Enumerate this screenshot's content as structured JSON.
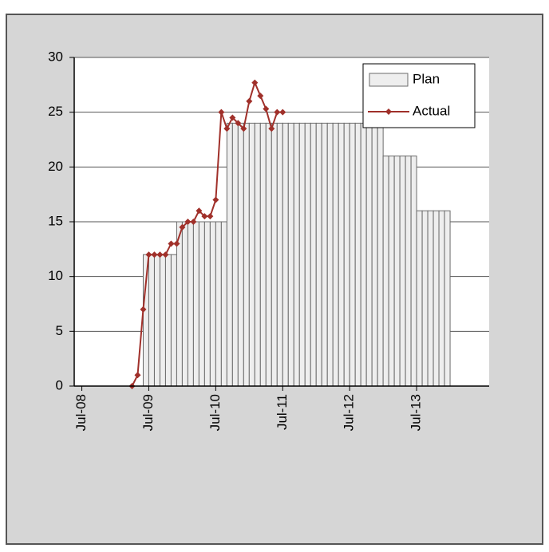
{
  "chart_data": {
    "type": "bar",
    "ylim": [
      0,
      30
    ],
    "yticks": [
      0,
      5,
      10,
      15,
      20,
      25,
      30
    ],
    "xlim": [
      "2008-05-20",
      "2014-08-01"
    ],
    "xticks": [
      {
        "value": "2008-07",
        "label": "Jul-08"
      },
      {
        "value": "2009-07",
        "label": "Jul-09"
      },
      {
        "value": "2010-07",
        "label": "Jul-10"
      },
      {
        "value": "2011-07",
        "label": "Jul-11"
      },
      {
        "value": "2012-07",
        "label": "Jul-12"
      },
      {
        "value": "2013-07",
        "label": "Jul-13"
      }
    ],
    "grid": true,
    "legend": "upper right",
    "series": [
      {
        "name": "Plan",
        "type": "bar",
        "color": "#eeeeee",
        "x": [
          "2009-06",
          "2009-07",
          "2009-08",
          "2009-09",
          "2009-10",
          "2009-11",
          "2009-12",
          "2010-01",
          "2010-02",
          "2010-03",
          "2010-04",
          "2010-05",
          "2010-06",
          "2010-07",
          "2010-08",
          "2010-09",
          "2010-10",
          "2010-11",
          "2010-12",
          "2011-01",
          "2011-02",
          "2011-03",
          "2011-04",
          "2011-05",
          "2011-06",
          "2011-07",
          "2011-08",
          "2011-09",
          "2011-10",
          "2011-11",
          "2011-12",
          "2012-01",
          "2012-02",
          "2012-03",
          "2012-04",
          "2012-05",
          "2012-06",
          "2012-07",
          "2012-08",
          "2012-09",
          "2012-10",
          "2012-11",
          "2012-12",
          "2013-01",
          "2013-02",
          "2013-03",
          "2013-04",
          "2013-05",
          "2013-06",
          "2013-07",
          "2013-08",
          "2013-09",
          "2013-10",
          "2013-11",
          "2013-12"
        ],
        "values": [
          12,
          12,
          12,
          12,
          12,
          12,
          15,
          15,
          15,
          15,
          15,
          15,
          15,
          15,
          15,
          24,
          24,
          24,
          24,
          24,
          24,
          24,
          24,
          24,
          24,
          24,
          24,
          24,
          24,
          24,
          24,
          24,
          24,
          24,
          24,
          24,
          24,
          24,
          24,
          24,
          24,
          24,
          24,
          21,
          21,
          21,
          21,
          21,
          21,
          16,
          16,
          16,
          16,
          16,
          16
        ]
      },
      {
        "name": "Actual",
        "type": "line",
        "color": "#a0302a",
        "x": [
          "2009-04",
          "2009-05",
          "2009-06",
          "2009-07",
          "2009-08",
          "2009-09",
          "2009-10",
          "2009-11",
          "2009-12",
          "2010-01",
          "2010-02",
          "2010-03",
          "2010-04",
          "2010-05",
          "2010-06",
          "2010-07",
          "2010-08",
          "2010-09",
          "2010-10",
          "2010-11",
          "2010-12",
          "2011-01",
          "2011-02",
          "2011-03",
          "2011-04",
          "2011-05",
          "2011-06",
          "2011-07"
        ],
        "values": [
          0,
          1,
          7,
          12,
          12,
          12,
          12,
          13,
          13,
          14.5,
          15,
          15,
          16,
          15.5,
          15.5,
          17,
          25,
          23.5,
          24.5,
          24,
          23.5,
          26,
          27.7,
          26.5,
          25.3,
          23.5,
          25,
          25
        ]
      }
    ]
  }
}
